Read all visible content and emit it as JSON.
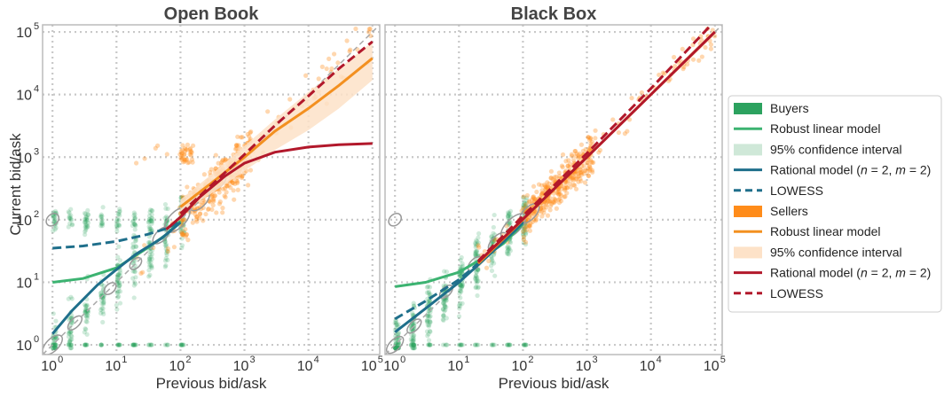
{
  "chart_data": {
    "type": "scatter",
    "x_scale": "log",
    "y_scale": "log",
    "xlabel": "Previous bid/ask",
    "ylabel": "Current bid/ask",
    "grid": true,
    "legend_placement": "right",
    "ticks": [
      {
        "base": "10",
        "exp": "0",
        "value": 1
      },
      {
        "base": "10",
        "exp": "1",
        "value": 10
      },
      {
        "base": "10",
        "exp": "2",
        "value": 100
      },
      {
        "base": "10",
        "exp": "3",
        "value": 1000
      },
      {
        "base": "10",
        "exp": "4",
        "value": 10000
      },
      {
        "base": "10",
        "exp": "5",
        "value": 100000
      }
    ],
    "xlim": [
      0.7,
      130000
    ],
    "ylim": [
      0.7,
      130000
    ],
    "colors": {
      "buyers": "#2ca25f",
      "buyers_line": "#3cb371",
      "buyers_ci": "#cfe8d8",
      "buyers_rational": "#1f6f8b",
      "sellers": "#ff8c1a",
      "sellers_line": "#f39020",
      "sellers_ci": "#fde2c8",
      "sellers_rational": "#b2182b",
      "identity": "#aaaaaa",
      "contour": "#999999"
    },
    "panels": [
      {
        "title": "Open Book",
        "curves": {
          "buyers_robust": [
            [
              1,
              10
            ],
            [
              3,
              11.5
            ],
            [
              10,
              17
            ],
            [
              30,
              35
            ],
            [
              60,
              58
            ],
            [
              100,
              95
            ]
          ],
          "buyers_rational": [
            [
              1,
              1.5
            ],
            [
              2,
              3.5
            ],
            [
              5,
              9
            ],
            [
              10,
              16
            ],
            [
              20,
              28
            ],
            [
              50,
              50
            ],
            [
              100,
              90
            ]
          ],
          "buyers_lowess": [
            [
              1,
              35
            ],
            [
              3,
              38
            ],
            [
              10,
              45
            ],
            [
              30,
              58
            ],
            [
              60,
              72
            ],
            [
              100,
              95
            ]
          ],
          "sellers_robust": [
            [
              100,
              160
            ],
            [
              300,
              380
            ],
            [
              1000,
              1000
            ],
            [
              3000,
              2600
            ],
            [
              10000,
              6000
            ],
            [
              30000,
              14000
            ],
            [
              100000,
              38000
            ]
          ],
          "sellers_ci_upper": [
            [
              100,
              210
            ],
            [
              300,
              520
            ],
            [
              1000,
              1500
            ],
            [
              3000,
              4000
            ],
            [
              10000,
              11000
            ],
            [
              30000,
              26000
            ],
            [
              100000,
              70000
            ]
          ],
          "sellers_ci_lower": [
            [
              100,
              130
            ],
            [
              300,
              260
            ],
            [
              1000,
              600
            ],
            [
              3000,
              1300
            ],
            [
              10000,
              2700
            ],
            [
              30000,
              6000
            ],
            [
              100000,
              17000
            ]
          ],
          "sellers_rational": [
            [
              60,
              70
            ],
            [
              100,
              110
            ],
            [
              200,
              230
            ],
            [
              500,
              500
            ],
            [
              1000,
              800
            ],
            [
              3000,
              1200
            ],
            [
              10000,
              1450
            ],
            [
              30000,
              1580
            ],
            [
              100000,
              1650
            ]
          ],
          "sellers_lowess": [
            [
              100,
              125
            ],
            [
              300,
              350
            ],
            [
              1000,
              1100
            ],
            [
              3000,
              3200
            ],
            [
              10000,
              9500
            ],
            [
              30000,
              26000
            ],
            [
              100000,
              70000
            ]
          ]
        }
      },
      {
        "title": "Black Box",
        "curves": {
          "buyers_robust": [
            [
              1,
              8.5
            ],
            [
              3,
              10
            ],
            [
              10,
              14.5
            ],
            [
              20,
              22
            ],
            [
              50,
              42
            ],
            [
              100,
              85
            ]
          ],
          "buyers_rational": [
            [
              1,
              1.6
            ],
            [
              3,
              3.8
            ],
            [
              10,
              10
            ],
            [
              20,
              19
            ],
            [
              50,
              45
            ],
            [
              100,
              90
            ]
          ],
          "buyers_lowess": [
            [
              1,
              2.6
            ],
            [
              3,
              5
            ],
            [
              10,
              11
            ],
            [
              20,
              20
            ],
            [
              50,
              48
            ],
            [
              100,
              95
            ]
          ],
          "sellers_robust": [
            [
              20,
              20
            ],
            [
              100,
              100
            ],
            [
              1000,
              1000
            ],
            [
              10000,
              10000
            ],
            [
              100000,
              100000
            ]
          ],
          "sellers_ci_upper": [
            [
              20,
              24
            ],
            [
              100,
              110
            ],
            [
              1000,
              1050
            ],
            [
              10000,
              10800
            ],
            [
              100000,
              112000
            ]
          ],
          "sellers_ci_lower": [
            [
              20,
              17
            ],
            [
              100,
              92
            ],
            [
              1000,
              960
            ],
            [
              10000,
              9300
            ],
            [
              100000,
              90000
            ]
          ],
          "sellers_rational": [
            [
              20,
              21
            ],
            [
              100,
              102
            ],
            [
              1000,
              1000
            ],
            [
              10000,
              10000
            ],
            [
              100000,
              100000
            ]
          ],
          "sellers_lowess": [
            [
              20,
              22
            ],
            [
              100,
              115
            ],
            [
              1000,
              1150
            ],
            [
              10000,
              12500
            ],
            [
              100000,
              150000
            ]
          ]
        }
      }
    ],
    "legend": [
      {
        "label": "Buyers",
        "kind": "patch",
        "color": "buyers"
      },
      {
        "label": "Robust linear model",
        "kind": "line",
        "color": "buyers_line"
      },
      {
        "label": "95% confidence interval",
        "kind": "patch",
        "color": "buyers_ci"
      },
      {
        "label": "Rational model (",
        "italic_n": "n",
        "mid": " = 2, ",
        "italic_m": "m",
        "tail": " = 2)",
        "kind": "line",
        "color": "buyers_rational"
      },
      {
        "label": "LOWESS",
        "kind": "dashed",
        "color": "buyers_rational"
      },
      {
        "label": "Sellers",
        "kind": "patch",
        "color": "sellers"
      },
      {
        "label": "Robust linear model",
        "kind": "line",
        "color": "sellers_line"
      },
      {
        "label": "95% confidence interval",
        "kind": "patch",
        "color": "sellers_ci"
      },
      {
        "label": "Rational model (",
        "italic_n": "n",
        "mid": " = 2, ",
        "italic_m": "m",
        "tail": " = 2)",
        "kind": "line",
        "color": "sellers_rational"
      },
      {
        "label": "LOWESS",
        "kind": "dashed",
        "color": "sellers_rational"
      }
    ]
  }
}
